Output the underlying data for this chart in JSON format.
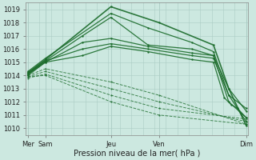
{
  "bg_color": "#cce8e0",
  "grid_color": "#aaccc4",
  "line_color": "#1a6b2a",
  "xlabel": "Pression niveau de la mer( hPa )",
  "ylim": [
    1009.5,
    1019.5
  ],
  "yticks": [
    1010,
    1011,
    1012,
    1013,
    1014,
    1015,
    1016,
    1017,
    1018,
    1019
  ],
  "xtick_labels": [
    "Mer",
    "Sam",
    "Jeu",
    "Ven",
    "Dim"
  ],
  "xtick_pos": [
    0.0,
    0.08,
    0.38,
    0.6,
    1.0
  ],
  "lines_solid": [
    {
      "x": [
        0.0,
        0.08,
        0.38,
        0.6,
        0.85,
        0.92,
        1.0
      ],
      "y": [
        1014.2,
        1015.2,
        1019.2,
        1018.0,
        1016.3,
        1013.0,
        1010.2
      ]
    },
    {
      "x": [
        0.0,
        0.08,
        0.38,
        0.55,
        0.75,
        0.85,
        0.92,
        1.0
      ],
      "y": [
        1014.3,
        1015.3,
        1018.7,
        1017.6,
        1016.5,
        1015.8,
        1012.5,
        1010.5
      ]
    },
    {
      "x": [
        0.0,
        0.08,
        0.25,
        0.38,
        0.55,
        0.75,
        0.85,
        0.92,
        1.0
      ],
      "y": [
        1014.1,
        1015.1,
        1017.0,
        1018.4,
        1016.3,
        1016.0,
        1015.5,
        1012.0,
        1010.8
      ]
    },
    {
      "x": [
        0.0,
        0.08,
        0.25,
        0.38,
        0.55,
        0.75,
        0.85,
        0.92,
        1.0
      ],
      "y": [
        1014.0,
        1015.0,
        1016.5,
        1016.8,
        1016.2,
        1015.7,
        1015.5,
        1013.0,
        1011.3
      ]
    },
    {
      "x": [
        0.0,
        0.08,
        0.25,
        0.38,
        0.55,
        0.75,
        0.85,
        0.92,
        1.0
      ],
      "y": [
        1014.2,
        1015.1,
        1016.0,
        1016.4,
        1016.0,
        1015.5,
        1015.3,
        1012.5,
        1011.5
      ]
    },
    {
      "x": [
        0.0,
        0.08,
        0.25,
        0.38,
        0.55,
        0.75,
        0.85,
        0.9,
        0.93,
        0.96,
        1.0
      ],
      "y": [
        1014.1,
        1015.0,
        1015.5,
        1016.2,
        1015.8,
        1015.2,
        1015.0,
        1012.3,
        1011.8,
        1011.5,
        1010.8
      ]
    }
  ],
  "lines_dashed": [
    {
      "x": [
        0.0,
        0.08,
        0.38,
        0.6,
        1.0
      ],
      "y": [
        1014.0,
        1014.5,
        1013.5,
        1012.5,
        1010.3
      ]
    },
    {
      "x": [
        0.0,
        0.08,
        0.38,
        0.6,
        1.0
      ],
      "y": [
        1013.9,
        1014.3,
        1013.0,
        1012.0,
        1010.5
      ]
    },
    {
      "x": [
        0.0,
        0.08,
        0.38,
        0.6,
        1.0
      ],
      "y": [
        1013.8,
        1014.1,
        1012.5,
        1011.5,
        1010.7
      ]
    },
    {
      "x": [
        0.0,
        0.08,
        0.38,
        0.6,
        1.0
      ],
      "y": [
        1013.9,
        1014.0,
        1012.0,
        1011.0,
        1010.3
      ]
    }
  ]
}
